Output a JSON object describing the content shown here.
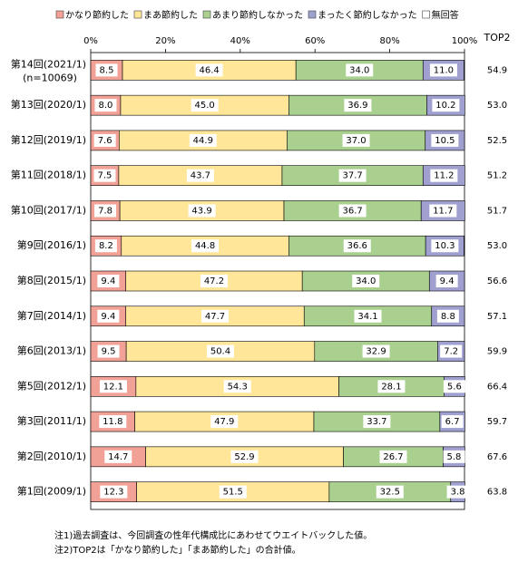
{
  "chart_data": {
    "type": "stacked-bar-horizontal",
    "categories": [
      "第14回(2021/1)",
      "第13回(2020/1)",
      "第12回(2019/1)",
      "第11回(2018/1)",
      "第10回(2017/1)",
      "第9回(2016/1)",
      "第8回(2015/1)",
      "第7回(2014/1)",
      "第6回(2013/1)",
      "第5回(2012/1)",
      "第3回(2011/1)",
      "第2回(2010/1)",
      "第1回(2009/1)"
    ],
    "sample_note": "(n=10069)",
    "series": [
      {
        "name": "かなり節約した",
        "color": "#f2a196",
        "values": [
          8.5,
          8.0,
          7.6,
          7.5,
          7.8,
          8.2,
          9.4,
          9.4,
          9.5,
          12.1,
          11.8,
          14.7,
          12.3
        ],
        "value_labels": [
          "8.5",
          "8.0",
          "7.6",
          "7.5",
          "7.8",
          "8.2",
          "9.4",
          "9.4",
          "9.5",
          "12.1",
          "11.8",
          "14.7",
          "12.3"
        ]
      },
      {
        "name": "まあ節約した",
        "color": "#ffe699",
        "values": [
          46.4,
          45.0,
          44.9,
          43.7,
          43.9,
          44.8,
          47.2,
          47.7,
          50.4,
          54.3,
          47.9,
          52.9,
          51.5
        ],
        "value_labels": [
          "46.4",
          "45.0",
          "44.9",
          "43.7",
          "43.9",
          "44.8",
          "47.2",
          "47.7",
          "50.4",
          "54.3",
          "47.9",
          "52.9",
          "51.5"
        ]
      },
      {
        "name": "あまり節約しなかった",
        "color": "#a9d08e",
        "values": [
          34.0,
          36.9,
          37.0,
          37.7,
          36.7,
          36.6,
          34.0,
          34.1,
          32.9,
          28.1,
          33.7,
          26.7,
          32.5
        ],
        "value_labels": [
          "34.0",
          "36.9",
          "37.0",
          "37.7",
          "36.7",
          "36.6",
          "34.0",
          "34.1",
          "32.9",
          "28.1",
          "33.7",
          "26.7",
          "32.5"
        ]
      },
      {
        "name": "まったく節約しなかった",
        "color": "#9fa0d0",
        "values": [
          11.0,
          10.2,
          10.5,
          11.2,
          11.7,
          10.3,
          9.4,
          8.8,
          7.2,
          5.6,
          6.7,
          5.8,
          3.8
        ],
        "value_labels": [
          "11.0",
          "10.2",
          "10.5",
          "11.2",
          "11.7",
          "10.3",
          "9.4",
          "8.8",
          "7.2",
          "5.6",
          "6.7",
          "5.8",
          "3.8"
        ]
      },
      {
        "name": "無回答",
        "color": "#ffffff",
        "values": [
          0.1,
          0,
          0,
          0,
          0,
          0.1,
          0,
          0,
          0,
          0,
          0,
          0,
          0
        ]
      }
    ],
    "xlim": [
      0,
      100
    ],
    "xticks": [
      {
        "value": 0,
        "label": "0%"
      },
      {
        "value": 20,
        "label": "20%"
      },
      {
        "value": 40,
        "label": "40%"
      },
      {
        "value": 60,
        "label": "60%"
      },
      {
        "value": 80,
        "label": "80%"
      },
      {
        "value": 100,
        "label": "100%"
      }
    ],
    "top2": {
      "title": "TOP2",
      "values": [
        54.9,
        53.0,
        52.5,
        51.2,
        51.7,
        53.0,
        56.6,
        57.1,
        59.9,
        66.4,
        59.7,
        67.6,
        63.8
      ],
      "value_labels": [
        "54.9",
        "53.0",
        "52.5",
        "51.2",
        "51.7",
        "53.0",
        "56.6",
        "57.1",
        "59.9",
        "66.4",
        "59.7",
        "67.6",
        "63.8"
      ]
    },
    "notes": [
      "注1)過去調査は、今回調査の性年代構成比にあわせてウエイトバックした値。",
      "注2)TOP2は「かなり節約した」「まあ節約した」の合計値。"
    ]
  }
}
